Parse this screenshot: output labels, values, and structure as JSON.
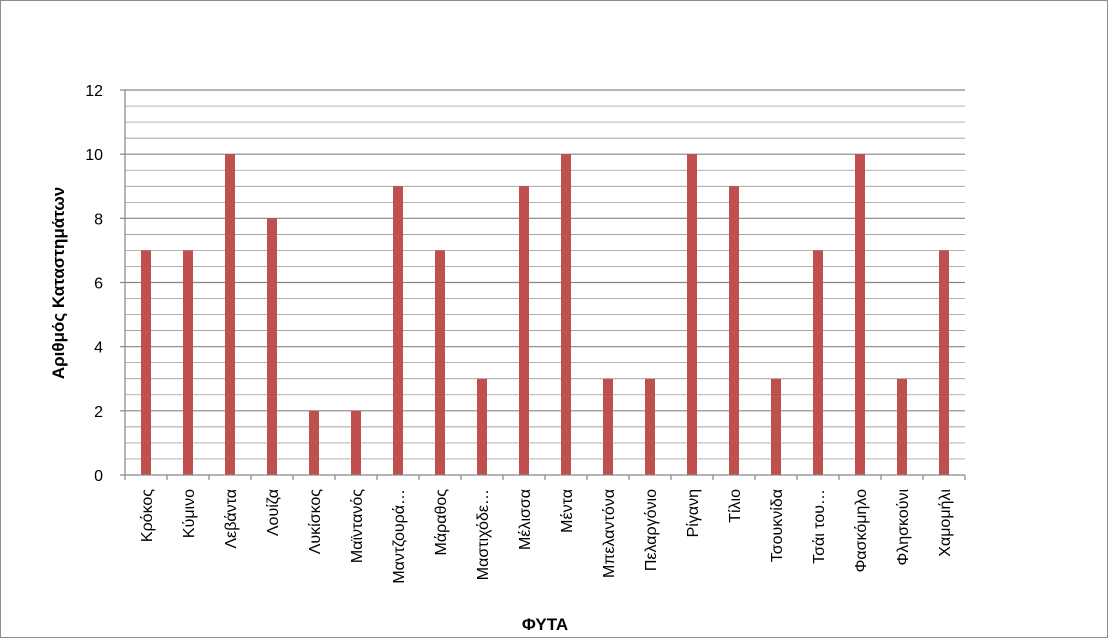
{
  "chart_data": {
    "type": "bar",
    "title": "",
    "xlabel": "ΦΥΤΑ",
    "ylabel": "Αριθμός Καταστημάτων",
    "categories": [
      "Κρόκος",
      "Κύμινο",
      "Λεβάντα",
      "Λουίζα",
      "Λυκίσκος",
      "Μαϊντανός",
      "Μαντζουρά…",
      "Μάραθος",
      "Μαστιχόδε…",
      "Μέλισσα",
      "Μέντα",
      "Μπελαντόνα",
      "Πελαργόνιο",
      "Ρίγανη",
      "Τίλιο",
      "Τσουκνίδα",
      "Τσάι του…",
      "Φασκόμηλο",
      "Φλησκούνι",
      "Χαμομήλι"
    ],
    "values": [
      7,
      7,
      10,
      8,
      2,
      2,
      9,
      7,
      3,
      9,
      10,
      3,
      3,
      10,
      9,
      3,
      7,
      10,
      3,
      7
    ],
    "ylim": [
      0,
      12
    ],
    "y_ticks": [
      0,
      2,
      4,
      6,
      8,
      10,
      12
    ],
    "minor_grid_step": 0.5,
    "grid": true,
    "legend": "none",
    "bar_color": "#c0504d",
    "grid_color": "#868686"
  }
}
